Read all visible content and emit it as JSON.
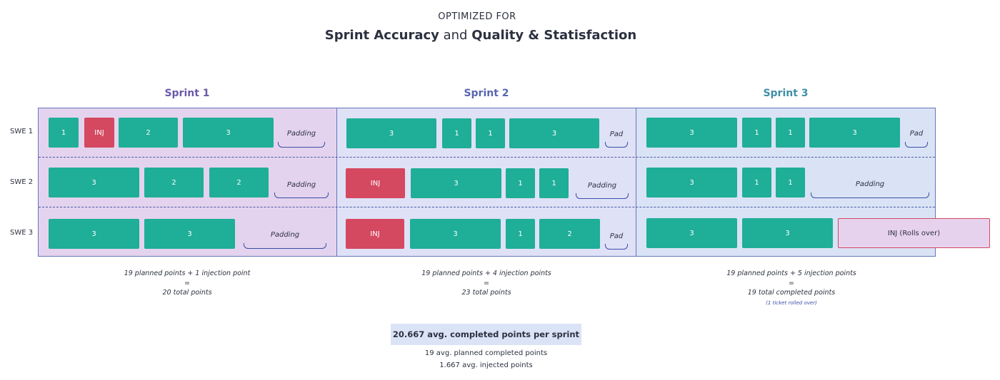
{
  "header": {
    "kicker": "OPTIMIZED FOR",
    "title_part1": "Sprint Accuracy",
    "title_join": " and ",
    "title_part2": "Quality & Statisfaction"
  },
  "colors": {
    "work_ticket": "#1fae98",
    "injection_ticket": "#d44860",
    "sprint1_bg": "#e4d3ee",
    "sprint2_bg": "#dfe1f6",
    "sprint3_bg": "#d9e3f5",
    "sprint1_title": "#6a5aa8",
    "sprint2_title": "#5866b0",
    "sprint3_title": "#3f8fa6"
  },
  "rows": [
    "SWE 1",
    "SWE 2",
    "SWE 3"
  ],
  "sprints": [
    {
      "title": "Sprint 1",
      "rows": [
        {
          "tickets": [
            "1",
            "INJ",
            "2",
            "3"
          ],
          "padding": "Padding"
        },
        {
          "tickets": [
            "3",
            "2",
            "2"
          ],
          "padding": "Padding"
        },
        {
          "tickets": [
            "3",
            "3"
          ],
          "padding": "Padding"
        }
      ],
      "summary": {
        "line1": "19 planned points + 1 injection point",
        "line2": "=",
        "line3": "20 total points"
      }
    },
    {
      "title": "Sprint 2",
      "rows": [
        {
          "tickets": [
            "3",
            "1",
            "1",
            "3"
          ],
          "padding": "Pad"
        },
        {
          "tickets": [
            "INJ",
            "3",
            "1",
            "1"
          ],
          "padding": "Padding"
        },
        {
          "tickets": [
            "INJ",
            "3",
            "1",
            "2"
          ],
          "padding": "Pad"
        }
      ],
      "summary": {
        "line1": "19 planned points + 4 injection points",
        "line2": "=",
        "line3": "23 total points"
      }
    },
    {
      "title": "Sprint 3",
      "rows": [
        {
          "tickets": [
            "3",
            "1",
            "1",
            "3"
          ],
          "padding": "Pad"
        },
        {
          "tickets": [
            "3",
            "1",
            "1"
          ],
          "padding": "Padding"
        },
        {
          "tickets": [
            "3",
            "3",
            "INJ (Rolls over)"
          ],
          "padding": ""
        }
      ],
      "summary": {
        "line1": "19 planned points + 5 injection points",
        "line2": "=",
        "line3": "19 total completed points",
        "note": "(1 ticket rolled over)"
      }
    }
  ],
  "averages": {
    "headline": "20.667 avg. completed points per sprint",
    "planned": "19 avg. planned completed points",
    "injected": "1.667 avg. injected points"
  }
}
